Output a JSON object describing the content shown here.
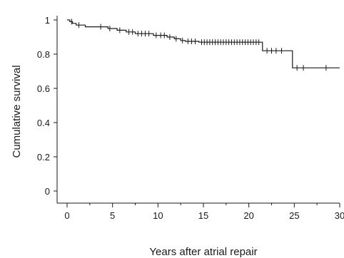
{
  "chart_data": {
    "type": "line",
    "subtype": "kaplan-meier-step",
    "title": "",
    "xlabel": "Years after atrial repair",
    "ylabel": "Cumulative survival",
    "xlim": [
      0,
      30
    ],
    "ylim": [
      0,
      1
    ],
    "x_ticks": [
      0,
      5,
      10,
      15,
      20,
      25,
      30
    ],
    "x_tick_labels": [
      "0",
      "5",
      "10",
      "15",
      "20",
      "25",
      "30"
    ],
    "y_ticks": [
      0,
      0.2,
      0.4,
      0.6,
      0.8,
      1
    ],
    "y_tick_labels": [
      "0",
      "0.2",
      "0.4",
      "0.6",
      "0.8",
      "1"
    ],
    "grid": false,
    "legend": "none",
    "series": [
      {
        "steps": [
          {
            "x": 0,
            "y": 1.0
          },
          {
            "x": 0.3,
            "y": 0.99
          },
          {
            "x": 0.6,
            "y": 0.98
          },
          {
            "x": 1.0,
            "y": 0.97
          },
          {
            "x": 2.0,
            "y": 0.96
          },
          {
            "x": 4.5,
            "y": 0.95
          },
          {
            "x": 5.5,
            "y": 0.94
          },
          {
            "x": 6.5,
            "y": 0.93
          },
          {
            "x": 7.5,
            "y": 0.92
          },
          {
            "x": 9.5,
            "y": 0.91
          },
          {
            "x": 11.0,
            "y": 0.9
          },
          {
            "x": 11.8,
            "y": 0.89
          },
          {
            "x": 12.5,
            "y": 0.88
          },
          {
            "x": 13.0,
            "y": 0.875
          },
          {
            "x": 14.5,
            "y": 0.87
          },
          {
            "x": 21.5,
            "y": 0.82
          },
          {
            "x": 24.8,
            "y": 0.72
          },
          {
            "x": 30.0,
            "y": 0.72
          }
        ],
        "censored": [
          {
            "x": 0.5,
            "y": 0.99
          },
          {
            "x": 1.3,
            "y": 0.97
          },
          {
            "x": 3.7,
            "y": 0.96
          },
          {
            "x": 4.7,
            "y": 0.95
          },
          {
            "x": 5.8,
            "y": 0.94
          },
          {
            "x": 6.8,
            "y": 0.93
          },
          {
            "x": 7.2,
            "y": 0.93
          },
          {
            "x": 7.8,
            "y": 0.92
          },
          {
            "x": 8.2,
            "y": 0.92
          },
          {
            "x": 8.6,
            "y": 0.92
          },
          {
            "x": 9.0,
            "y": 0.92
          },
          {
            "x": 9.8,
            "y": 0.91
          },
          {
            "x": 10.3,
            "y": 0.91
          },
          {
            "x": 10.7,
            "y": 0.91
          },
          {
            "x": 11.3,
            "y": 0.9
          },
          {
            "x": 12.0,
            "y": 0.89
          },
          {
            "x": 12.7,
            "y": 0.88
          },
          {
            "x": 13.3,
            "y": 0.875
          },
          {
            "x": 13.7,
            "y": 0.875
          },
          {
            "x": 14.1,
            "y": 0.875
          },
          {
            "x": 14.8,
            "y": 0.87
          },
          {
            "x": 15.1,
            "y": 0.87
          },
          {
            "x": 15.4,
            "y": 0.87
          },
          {
            "x": 15.7,
            "y": 0.87
          },
          {
            "x": 16.0,
            "y": 0.87
          },
          {
            "x": 16.3,
            "y": 0.87
          },
          {
            "x": 16.6,
            "y": 0.87
          },
          {
            "x": 16.9,
            "y": 0.87
          },
          {
            "x": 17.2,
            "y": 0.87
          },
          {
            "x": 17.5,
            "y": 0.87
          },
          {
            "x": 17.8,
            "y": 0.87
          },
          {
            "x": 18.1,
            "y": 0.87
          },
          {
            "x": 18.4,
            "y": 0.87
          },
          {
            "x": 18.7,
            "y": 0.87
          },
          {
            "x": 19.0,
            "y": 0.87
          },
          {
            "x": 19.3,
            "y": 0.87
          },
          {
            "x": 19.6,
            "y": 0.87
          },
          {
            "x": 19.9,
            "y": 0.87
          },
          {
            "x": 20.2,
            "y": 0.87
          },
          {
            "x": 20.5,
            "y": 0.87
          },
          {
            "x": 20.8,
            "y": 0.87
          },
          {
            "x": 21.1,
            "y": 0.87
          },
          {
            "x": 22.0,
            "y": 0.82
          },
          {
            "x": 22.5,
            "y": 0.82
          },
          {
            "x": 23.0,
            "y": 0.82
          },
          {
            "x": 23.6,
            "y": 0.82
          },
          {
            "x": 25.3,
            "y": 0.72
          },
          {
            "x": 26.0,
            "y": 0.72
          },
          {
            "x": 28.5,
            "y": 0.72
          }
        ]
      }
    ]
  }
}
